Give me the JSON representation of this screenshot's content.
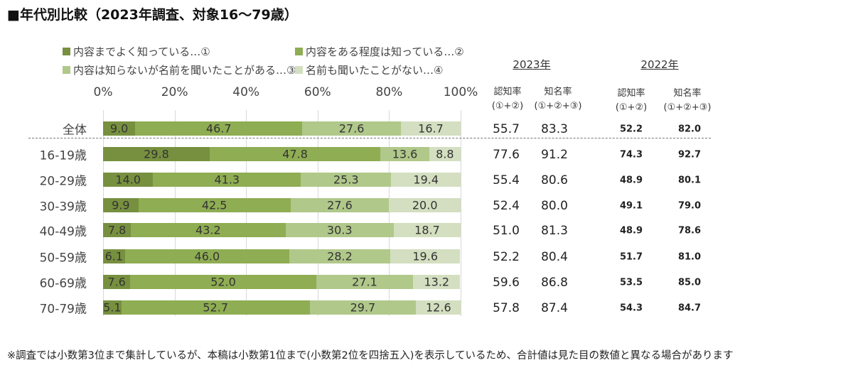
{
  "title": "■年代別比較（2023年調査、対象16〜79歳）",
  "footnote": "※調査では小数第3位まで集計しているが、本稿は小数第1位まで(小数第2位を四捨五入)を表示しているため、合計値は見た目の数値と異なる場合があります",
  "table": {
    "year_2023": "2023年",
    "year_2022": "2022年",
    "col_recognition": "認知率",
    "col_recognition_sub": "(①+②)",
    "col_awareness": "知名率",
    "col_awareness_sub": "(①+②+③)",
    "rows_2023": [
      [
        "55.7",
        "83.3"
      ],
      [
        "77.6",
        "91.2"
      ],
      [
        "55.4",
        "80.6"
      ],
      [
        "52.4",
        "80.0"
      ],
      [
        "51.0",
        "81.3"
      ],
      [
        "52.2",
        "80.4"
      ],
      [
        "59.6",
        "86.8"
      ],
      [
        "57.8",
        "87.4"
      ]
    ],
    "rows_2022": [
      [
        "52.2",
        "82.0"
      ],
      [
        "74.3",
        "92.7"
      ],
      [
        "48.9",
        "80.1"
      ],
      [
        "49.1",
        "79.0"
      ],
      [
        "48.9",
        "78.6"
      ],
      [
        "51.7",
        "81.0"
      ],
      [
        "53.5",
        "85.0"
      ],
      [
        "54.3",
        "84.7"
      ]
    ]
  },
  "chart_data": {
    "type": "bar",
    "orientation": "horizontal",
    "stacked": true,
    "title": "年代別比較（2023年調査、対象16〜79歳）",
    "xlim": [
      0,
      100
    ],
    "xticks": [
      "0%",
      "20%",
      "40%",
      "60%",
      "80%",
      "100%"
    ],
    "grid": true,
    "legend_position": "top",
    "categories": [
      "全体",
      "16-19歳",
      "20-29歳",
      "30-39歳",
      "40-49歳",
      "50-59歳",
      "60-69歳",
      "70-79歳"
    ],
    "series": [
      {
        "name": "内容までよく知っている…①",
        "color": "#77903f",
        "values": [
          9.0,
          29.8,
          14.0,
          9.9,
          7.8,
          6.1,
          7.6,
          5.1
        ]
      },
      {
        "name": "内容をある程度は知っている…②",
        "color": "#8fad52",
        "values": [
          46.7,
          47.8,
          41.3,
          42.5,
          43.2,
          46.0,
          52.0,
          52.7
        ]
      },
      {
        "name": "内容は知らないが名前を聞いたことがある…③",
        "color": "#b0c88a",
        "values": [
          27.6,
          13.6,
          25.3,
          27.6,
          30.3,
          28.2,
          27.1,
          29.7
        ]
      },
      {
        "name": "名前も聞いたことがない…④",
        "color": "#d3dfc0",
        "values": [
          16.7,
          8.8,
          19.4,
          20.0,
          18.7,
          19.6,
          13.2,
          12.6
        ]
      }
    ]
  }
}
